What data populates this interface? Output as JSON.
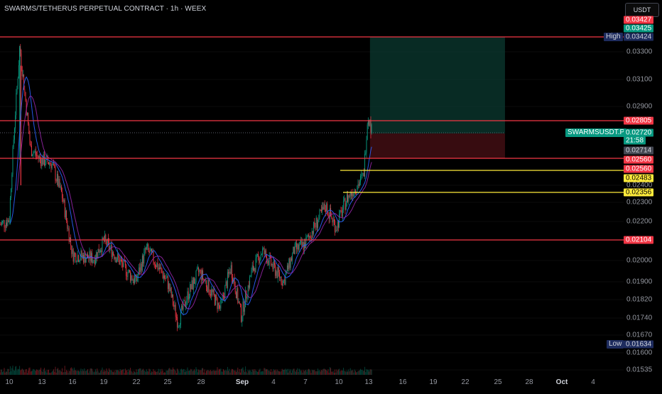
{
  "title": "SWARMS/TETHERUS PERPETUAL CONTRACT · 1h · WEEX",
  "currency_button": "USDT",
  "colors": {
    "background": "#000000",
    "red_line": "#f23645",
    "yellow_line": "#ffeb3b",
    "up": "#089981",
    "down": "#f23645",
    "target_zone": "#0b3a30",
    "stop_zone": "#3d0d12",
    "ma_blue": "#2962ff",
    "ma_purple": "#9c27b0"
  },
  "price_axis": {
    "ticks": [
      "0.03300",
      "0.03100",
      "0.02900",
      "0.02400",
      "0.02300",
      "0.02200",
      "0.02000",
      "0.01900",
      "0.01820",
      "0.01740",
      "0.01670",
      "0.01600",
      "0.01535"
    ]
  },
  "date_axis": {
    "ticks": [
      "10",
      "13",
      "16",
      "19",
      "22",
      "25",
      "28",
      "Sep",
      "4",
      "7",
      "10",
      "13",
      "16",
      "19",
      "22",
      "25",
      "28",
      "Oct",
      "4"
    ]
  },
  "price_tags": {
    "top_partial": "0.03427",
    "top_teal": "0.03425",
    "high_label": "High",
    "high_value": "0.03424",
    "r1": "0.02805",
    "symbol": "SWARMSUSDT.P",
    "last_price": "0.02720",
    "countdown": "21:58",
    "entry": "0.02714",
    "stop1": "0.02560",
    "stop2": "0.02560",
    "y1": "0.02483",
    "y2": "0.02356",
    "r_low": "0.02104",
    "low_label": "Low",
    "low_value": "0.01634"
  },
  "chart_data": {
    "type": "candlestick",
    "title": "SWARMS/TETHERUS PERPETUAL CONTRACT · 1h · WEEX",
    "x_range": [
      "Aug 8",
      "Oct 5"
    ],
    "y_range": [
      0.0152,
      0.0349
    ],
    "approx_close_path": [
      {
        "date": "Aug 8",
        "price": 0.0215
      },
      {
        "date": "Aug 10",
        "price": 0.0221
      },
      {
        "date": "Aug 11",
        "price": 0.0334
      },
      {
        "date": "Aug 12",
        "price": 0.0262
      },
      {
        "date": "Aug 13",
        "price": 0.0255
      },
      {
        "date": "Aug 14",
        "price": 0.0253
      },
      {
        "date": "Aug 15",
        "price": 0.0234
      },
      {
        "date": "Aug 16",
        "price": 0.0203
      },
      {
        "date": "Aug 18",
        "price": 0.0201
      },
      {
        "date": "Aug 19",
        "price": 0.021
      },
      {
        "date": "Aug 21",
        "price": 0.0196
      },
      {
        "date": "Aug 22",
        "price": 0.019
      },
      {
        "date": "Aug 23",
        "price": 0.0206
      },
      {
        "date": "Aug 25",
        "price": 0.019
      },
      {
        "date": "Aug 26",
        "price": 0.0172
      },
      {
        "date": "Aug 27",
        "price": 0.0185
      },
      {
        "date": "Aug 28",
        "price": 0.0195
      },
      {
        "date": "Aug 30",
        "price": 0.0178
      },
      {
        "date": "Aug 31",
        "price": 0.0197
      },
      {
        "date": "Sep 1",
        "price": 0.0175
      },
      {
        "date": "Sep 2",
        "price": 0.0195
      },
      {
        "date": "Sep 3",
        "price": 0.0205
      },
      {
        "date": "Sep 4",
        "price": 0.0197
      },
      {
        "date": "Sep 5",
        "price": 0.019
      },
      {
        "date": "Sep 6",
        "price": 0.0205
      },
      {
        "date": "Sep 7",
        "price": 0.0208
      },
      {
        "date": "Sep 8",
        "price": 0.0218
      },
      {
        "date": "Sep 9",
        "price": 0.0228
      },
      {
        "date": "Sep 10",
        "price": 0.0217
      },
      {
        "date": "Sep 11",
        "price": 0.0232
      },
      {
        "date": "Sep 12",
        "price": 0.024
      },
      {
        "date": "Sep 12.6",
        "price": 0.0245
      },
      {
        "date": "Sep 13",
        "price": 0.0285
      },
      {
        "date": "Sep 13.4",
        "price": 0.0272
      }
    ],
    "horizontal_lines": [
      {
        "price": 0.03424,
        "color": "red"
      },
      {
        "price": 0.02805,
        "color": "red"
      },
      {
        "price": 0.0256,
        "color": "red"
      },
      {
        "price": 0.02104,
        "color": "red"
      },
      {
        "price": 0.02483,
        "color": "yellow"
      },
      {
        "price": 0.02356,
        "color": "yellow"
      }
    ],
    "long_position": {
      "entry": 0.02714,
      "target": 0.03424,
      "stop": 0.0256,
      "start": "Sep 13.2",
      "end": "Sep 26"
    },
    "high": 0.03424,
    "low": 0.01634
  }
}
